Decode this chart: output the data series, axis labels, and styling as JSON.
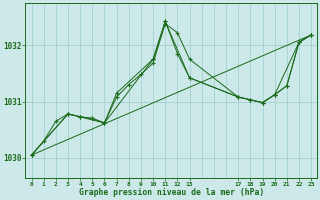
{
  "title": "Graphe pression niveau de la mer (hPa)",
  "bg_color": "#cce8e8",
  "line_color": "#1a6b1a",
  "grid_color": "#9ecece",
  "yticks": [
    1030,
    1031,
    1032
  ],
  "ylim": [
    1029.65,
    1032.75
  ],
  "xlim": [
    -0.5,
    23.5
  ],
  "xtick_positions": [
    0,
    1,
    2,
    3,
    4,
    5,
    6,
    7,
    8,
    9,
    10,
    11,
    12,
    13,
    17,
    18,
    19,
    20,
    21,
    22,
    23
  ],
  "xtick_labels": [
    "0",
    "1",
    "2",
    "3",
    "4",
    "5",
    "6",
    "7",
    "8",
    "9",
    "10",
    "11",
    "12",
    "13",
    "17",
    "18",
    "19",
    "20",
    "21",
    "22",
    "23"
  ],
  "lines": [
    {
      "x": [
        0,
        1,
        2,
        3,
        4,
        5,
        6,
        7,
        8,
        9,
        10,
        11,
        12,
        13,
        17,
        18,
        19,
        20,
        21,
        22,
        23
      ],
      "y": [
        1030.05,
        1030.3,
        1030.65,
        1030.78,
        1030.73,
        1030.7,
        1030.62,
        1031.08,
        1031.3,
        1031.48,
        1031.68,
        1032.38,
        1032.22,
        1031.75,
        1031.08,
        1031.03,
        1030.98,
        1031.12,
        1031.28,
        1032.05,
        1032.18
      ],
      "marker": "+"
    },
    {
      "x": [
        0,
        3,
        4,
        5,
        6,
        10,
        11,
        12,
        13,
        17,
        18,
        19,
        20,
        21,
        22,
        23
      ],
      "y": [
        1030.05,
        1030.78,
        1030.73,
        1030.7,
        1030.62,
        1031.75,
        1032.42,
        1031.85,
        1031.42,
        1031.08,
        1031.03,
        1030.98,
        1031.12,
        1031.28,
        1032.05,
        1032.18
      ],
      "marker": "+"
    },
    {
      "x": [
        0,
        23
      ],
      "y": [
        1030.05,
        1032.18
      ],
      "marker": null
    },
    {
      "x": [
        0,
        3,
        6,
        7,
        10,
        11,
        13,
        17,
        19,
        20,
        22,
        23
      ],
      "y": [
        1030.05,
        1030.78,
        1030.62,
        1031.15,
        1031.75,
        1032.42,
        1031.42,
        1031.08,
        1030.98,
        1031.12,
        1032.05,
        1032.18
      ],
      "marker": "+"
    }
  ]
}
